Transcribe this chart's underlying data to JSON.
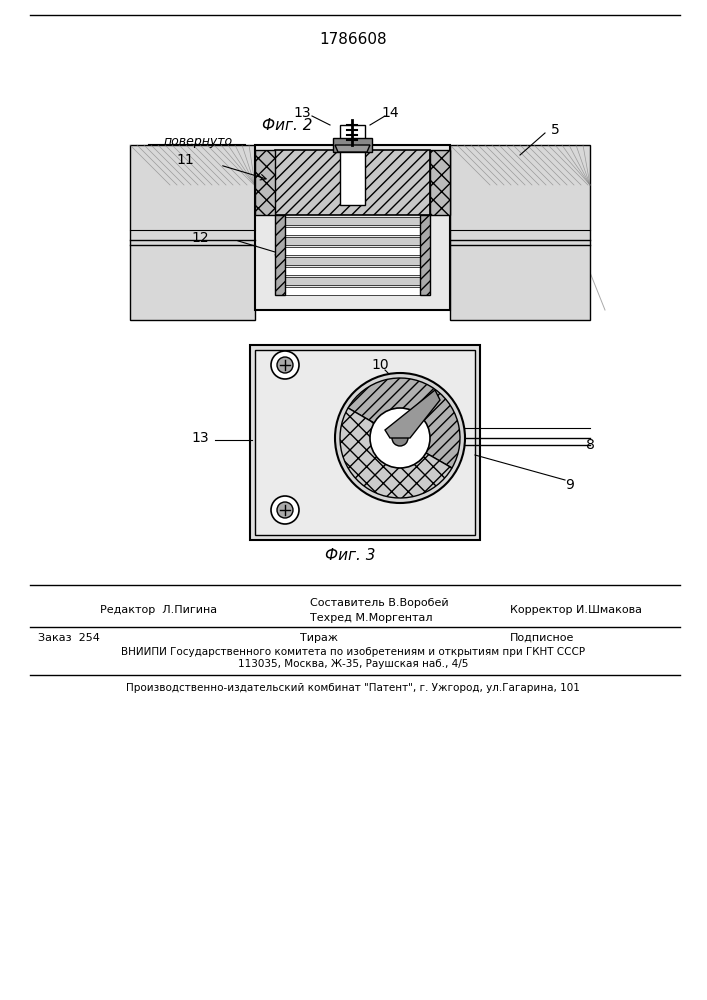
{
  "patent_number": "1786608",
  "fig2_label": "Фиг. 2",
  "fig3_label": "Фиг. 3",
  "povern_label": "повернуто",
  "editor_line": "Редактор  Л.Пигина",
  "composer_line1": "Составитель В.Воробей",
  "composer_line2": "Техред М.Моргентал",
  "corrector_line": "Корректор И.Шмакова",
  "order_line": "Заказ  254",
  "tirazh_line": "Тираж",
  "podpisnoe_line": "Подписное",
  "vniiipi_line": "ВНИИПИ Государственного комитета по изобретениям и открытиям при ГКНТ СССР",
  "address_line": "113035, Москва, Ж-35, Раушская наб., 4/5",
  "factory_line": "Производственно-издательский комбинат \"Патент\", г. Ужгород, ул.Гагарина, 101",
  "bg_color": "#ffffff",
  "line_color": "#000000",
  "drawing_color": "#333333",
  "hatch_color": "#555555"
}
